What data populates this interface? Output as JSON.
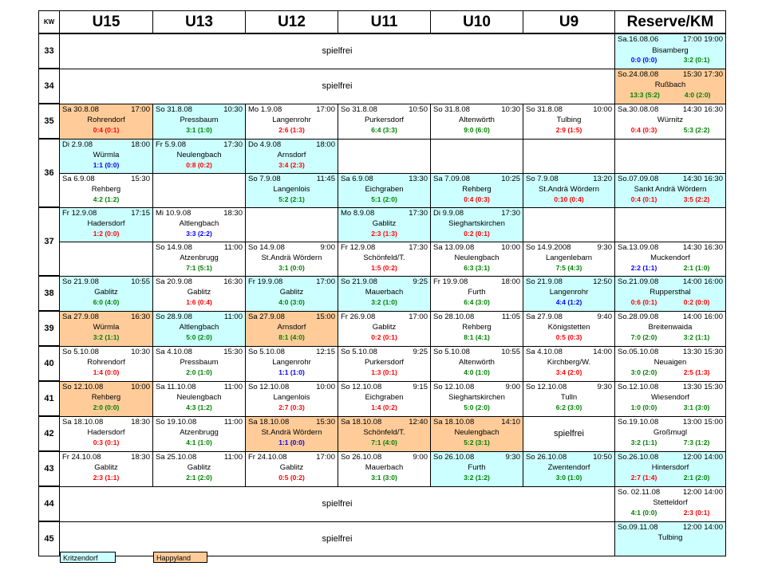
{
  "header": {
    "kw": "KW",
    "cols": [
      "U15",
      "U13",
      "U12",
      "U11",
      "U10",
      "U9",
      "Reserve/KM"
    ]
  },
  "weeks": {
    "w33": {
      "kw": "33",
      "spielfrei": "spielfrei",
      "res": {
        "date": "Sa.16.08.06",
        "time": "17:00 19:00",
        "place": "Bisamberg",
        "s1": "0:0 (0:0)",
        "s2": "3:2 (0:1)"
      }
    },
    "w34": {
      "kw": "34",
      "spielfrei": "spielfrei",
      "res": {
        "date": "So.24.08.08",
        "time": "15:30 17:30",
        "place": "Rußbach",
        "s1": "13:3 (5:2)",
        "s2": "4:0 (2:0)"
      }
    },
    "w35": {
      "kw": "35",
      "u15": {
        "date": "Sa 30.8.08",
        "time": "17:00",
        "place": "Rohrendorf",
        "score": "0:4 (0:1)"
      },
      "u13": {
        "date": "So 31.8.08",
        "time": "10:30",
        "place": "Pressbaum",
        "score": "3:1 (1:0)"
      },
      "u12": {
        "date": "Mo 1.9.08",
        "time": "17:00",
        "place": "Langenrohr",
        "score": "2:6 (1:3)"
      },
      "u11": {
        "date": "So 31.8.08",
        "time": "10:50",
        "place": "Purkersdorf",
        "score": "6:4 (3:3)"
      },
      "u10": {
        "date": "So 31.8.08",
        "time": "10:30",
        "place": "Altenwörth",
        "score": "9:0 (6:0)"
      },
      "u9": {
        "date": "So 31.8.08",
        "time": "10:00",
        "place": "Tulbing",
        "score": "2:9 (1:5)"
      },
      "res": {
        "date": "Sa.30.08.08",
        "time": "14:30 16:30",
        "place": "Würnitz",
        "s1": "0:4 (0:3)",
        "s2": "5:3 (2:2)"
      }
    },
    "w36a": {
      "kw": "36",
      "u15": {
        "date": "Di 2.9.08",
        "time": "18:00",
        "place": "Würmla",
        "score": "1:1 (0:0)"
      },
      "u13": {
        "date": "Fr 5.9.08",
        "time": "17:30",
        "place": "Neulengbach",
        "score": "0:8 (0:2)"
      },
      "u12": {
        "date": "Do 4.9.08",
        "time": "18:00",
        "place": "Arnsdorf",
        "score": "3:4 (2:3)"
      }
    },
    "w36b": {
      "u15": {
        "date": "Sa 6.9.08",
        "time": "15:30",
        "place": "Rehberg",
        "score": "4:2 (1:2)"
      },
      "u12": {
        "date": "So 7.9.08",
        "time": "11:45",
        "place": "Langenlois",
        "score": "5:2 (2:1)"
      },
      "u11": {
        "date": "Sa 6.9.08",
        "time": "13:30",
        "place": "Eichgraben",
        "score": "5:1 (2:0)"
      },
      "u10": {
        "date": "Sa 7.09.08",
        "time": "10:25",
        "place": "Rehberg",
        "score": "0:4 (0:3)"
      },
      "u9": {
        "date": "So 7.9.08",
        "time": "13:20",
        "place": "St.Andrä Wördern",
        "score": "0:10 (0:4)"
      },
      "res": {
        "date": "So.07.09.08",
        "time": "14:30 16:30",
        "place": "Sankt Andrä Wördern",
        "s1": "0:4 (0:1)",
        "s2": "3:5 (2:2)"
      }
    },
    "w37a": {
      "kw": "37",
      "u15": {
        "date": "Fr 12.9.08",
        "time": "17:15",
        "place": "Hadersdorf",
        "score": "1:2 (0:0)"
      },
      "u13": {
        "date": "Mi 10.9.08",
        "time": "18:30",
        "place": "Altlengbach",
        "score": "3:3 (2:2)"
      },
      "u11": {
        "date": "Mo 8.9.08",
        "time": "17:30",
        "place": "Gablitz",
        "score": "2:3 (1:3)"
      },
      "u10": {
        "date": "Di 9.9.08",
        "time": "17:30",
        "place": "Sieghartskirchen",
        "score": "0:2 (0:1)"
      }
    },
    "w37b": {
      "u13": {
        "date": "So 14.9.08",
        "time": "11:00",
        "place": "Atzenbrugg",
        "score": "7:1 (5:1)"
      },
      "u12": {
        "date": "So 14.9.08",
        "time": "9:00",
        "place": "St.Andrä Wördern",
        "score": "3:1 (0:0)"
      },
      "u11": {
        "date": "Fr 12.9.08",
        "time": "17:30",
        "place": "Schönfeld/T.",
        "score": "1:5 (0:2)"
      },
      "u10": {
        "date": "Sa 13.09.08",
        "time": "10:00",
        "place": "Neulengbach",
        "score": "6:3 (3:1)"
      },
      "u9": {
        "date": "So 14.9.2008",
        "time": "9:30",
        "place": "Langenlebarn",
        "score": "7:5 (4:3)"
      },
      "res": {
        "date": "Sa.13.09.08",
        "time": "14:30 16:30",
        "place": "Muckendorf",
        "s1": "2:2 (1:1)",
        "s2": "2:1 (1:0)"
      }
    },
    "w38": {
      "kw": "38",
      "u15": {
        "date": "So 21.9.08",
        "time": "10:55",
        "place": "Gablitz",
        "score": "6:0 (4:0)"
      },
      "u13": {
        "date": "Sa 20.9.08",
        "time": "16:30",
        "place": "Gablitz",
        "score": "1:6 (0:4)"
      },
      "u12": {
        "date": "Fr 19.9.08",
        "time": "17:00",
        "place": "Gablitz",
        "score": "4:0 (3:0)"
      },
      "u11": {
        "date": "So 21.9.08",
        "time": "9:25",
        "place": "Mauerbach",
        "score": "3:2 (1:0)"
      },
      "u10": {
        "date": "Fr 19.9.08",
        "time": "18:00",
        "place": "Furth",
        "score": "6:4 (3:0)"
      },
      "u9": {
        "date": "So 21.9.08",
        "time": "12:50",
        "place": "Langenrohr",
        "score": "4:4 (1:2)"
      },
      "res": {
        "date": "So.21.09.08",
        "time": "14:00 16:00",
        "place": "Ruppersthal",
        "s1": "0:6 (0:1)",
        "s2": "0:2 (0:0)"
      }
    },
    "w39": {
      "kw": "39",
      "u15": {
        "date": "Sa 27.9.08",
        "time": "16:30",
        "place": "Würmla",
        "score": "3:2 (1:1)"
      },
      "u13": {
        "date": "So 28.9.08",
        "time": "11:00",
        "place": "Altlengbach",
        "score": "5:0 (2:0)"
      },
      "u12": {
        "date": "Sa 27.9.08",
        "time": "15:00",
        "place": "Arnsdorf",
        "score": "8:1 (4:0)"
      },
      "u11": {
        "date": "Fr 26.9.08",
        "time": "17:00",
        "place": "Gablitz",
        "score": "0:2 (0:1)"
      },
      "u10": {
        "date": "So 28.10.08",
        "time": "11:05",
        "place": "Rehberg",
        "score": "8:1 (4:1)"
      },
      "u9": {
        "date": "Sa 27.9.08",
        "time": "9:40",
        "place": "Königstetten",
        "score": "0:5 (0:3)"
      },
      "res": {
        "date": "So.28.09.08",
        "time": "14:00 16:00",
        "place": "Breitenwaida",
        "s1": "7:0 (2:0)",
        "s2": "3:2 (1:1)"
      }
    },
    "w40": {
      "kw": "40",
      "u15": {
        "date": "So 5.10.08",
        "time": "10:30",
        "place": "Rohrendorf",
        "score": "1:4 (0:0)"
      },
      "u13": {
        "date": "Sa 4.10.08",
        "time": "15:30",
        "place": "Pressbaum",
        "score": "2:0 (1:0)"
      },
      "u12": {
        "date": "So 5.10.08",
        "time": "12:15",
        "place": "Langenrohr",
        "score": "1:1 (1:0)"
      },
      "u11": {
        "date": "So 5.10.08",
        "time": "9:25",
        "place": "Purkersdorf",
        "score": "1:3 (0:1)"
      },
      "u10": {
        "date": "So 5.10.08",
        "time": "10:55",
        "place": "Altenwörth",
        "score": "4:0 (1:0)"
      },
      "u9": {
        "date": "Sa 4.10.08",
        "time": "14:00",
        "place": "Kirchberg/W.",
        "score": "3:4 (2:0)"
      },
      "res": {
        "date": "So.05.10.08",
        "time": "13:30 15:30",
        "place": "Neuaigen",
        "s1": "3:0 (2:0)",
        "s2": "2:5 (1:3)"
      }
    },
    "w41": {
      "kw": "41",
      "u15": {
        "date": "So 12.10.08",
        "time": "10:00",
        "place": "Rehberg",
        "score": "2:0 (0:0)"
      },
      "u13": {
        "date": "Sa 11.10.08",
        "time": "11:00",
        "place": "Neulengbach",
        "score": "4:3 (1:2)"
      },
      "u12": {
        "date": "So 12.10.08",
        "time": "10:00",
        "place": "Langenlois",
        "score": "2:7 (0:3)"
      },
      "u11": {
        "date": "So 12.10.08",
        "time": "9:15",
        "place": "Eichgraben",
        "score": "1:4 (0:2)"
      },
      "u10": {
        "date": "So 12.10.08",
        "time": "9:00",
        "place": "Sieghartskirchen",
        "score": "5:0 (2:0)"
      },
      "u9": {
        "date": "So 12.10.08",
        "time": "9:30",
        "place": "Tulln",
        "score": "6:2 (3:0)"
      },
      "res": {
        "date": "So.12.10.08",
        "time": "13:30 15:30",
        "place": "Wiesendorf",
        "s1": "1:0 (0:0)",
        "s2": "3:1 (3:0)"
      }
    },
    "w42": {
      "kw": "42",
      "u15": {
        "date": "Sa 18.10.08",
        "time": "18:30",
        "place": "Hadersdorf",
        "score": "0:3 (0:1)"
      },
      "u13": {
        "date": "So 19.10.08",
        "time": "11:00",
        "place": "Atzenbrugg",
        "score": "4:1 (1:0)"
      },
      "u12": {
        "date": "Sa 18.10.08",
        "time": "15:30",
        "place": "St.Andrä Wördern",
        "score": "1:1 (0:0)"
      },
      "u11": {
        "date": "Sa 18.10.08",
        "time": "12:40",
        "place": "Schönfeld/T.",
        "score": "7:1 (4:0)"
      },
      "u10": {
        "date": "Sa 18.10.08",
        "time": "14:10",
        "place": "Neulengbach",
        "score": "5:2 (3:1)"
      },
      "u9_spielfrei": "spielfrei",
      "res": {
        "date": "So.19.10.08",
        "time": "13:00 15:00",
        "place": "Großmugl",
        "s1": "3:2 (1:1)",
        "s2": "7:3 (1:2)"
      }
    },
    "w43": {
      "kw": "43",
      "u15": {
        "date": "Fr 24.10.08",
        "time": "18:30",
        "place": "Gablitz",
        "score": "2:3 (1:1)"
      },
      "u13": {
        "date": "Sa 25.10.08",
        "time": "11:00",
        "place": "Gablitz",
        "score": "2:1 (2:0)"
      },
      "u12": {
        "date": "Fr 24.10.08",
        "time": "17:00",
        "place": "Gablitz",
        "score": "0:5 (0:2)"
      },
      "u11": {
        "date": "So 26.10.08",
        "time": "9:00",
        "place": "Mauerbach",
        "score": "3:1 (3:0)"
      },
      "u10": {
        "date": "So 26.10.08",
        "time": "9:30",
        "place": "Furth",
        "score": "3:2 (1:2)"
      },
      "u9": {
        "date": "So 26.10.08",
        "time": "10:50",
        "place": "Zwentendorf",
        "score": "3:0 (1:0)"
      },
      "res": {
        "date": "So.26.10.08",
        "time": "12:00 14:00",
        "place": "Hintersdorf",
        "s1": "2:7 (1:4)",
        "s2": "2:1 (2:0)"
      }
    },
    "w44": {
      "kw": "44",
      "spielfrei": "spielfrei",
      "res": {
        "date": "So. 02.11.08",
        "time": "12:00 14:00",
        "place": "Stetteldorf",
        "s1": "4:1 (0:0)",
        "s2": "2:3 (0:1)"
      }
    },
    "w45": {
      "kw": "45",
      "spielfrei": "spielfrei",
      "res": {
        "date": "So.09.11.08",
        "time": "12:00 14:00",
        "place": "Tulbing",
        "s1": "",
        "s2": ""
      }
    }
  },
  "legend": {
    "kritzendorf": "Kritzendorf",
    "happyland": "Happyland"
  },
  "colors": {
    "kritzendorf": "#ccffff",
    "happyland": "#ffcc99",
    "win": "#008000",
    "loss": "#ff0000",
    "draw": "#0000ff"
  }
}
